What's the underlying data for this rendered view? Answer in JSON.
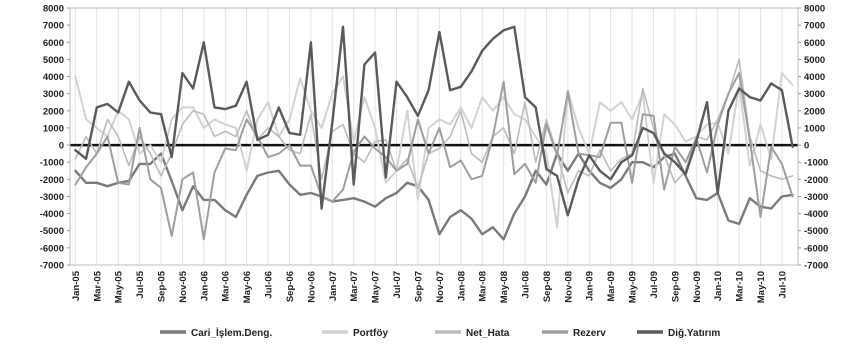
{
  "chart_data": {
    "type": "line",
    "title": "",
    "xlabel": "",
    "ylabel": "",
    "ylim": [
      -7000,
      8000
    ],
    "y_right_ticks": true,
    "grid": "vertical-gridlines",
    "zero_line": true,
    "legend_position": "bottom",
    "x": [
      "Jan-05",
      "Feb-05",
      "Mar-05",
      "Apr-05",
      "May-05",
      "Jun-05",
      "Jul-05",
      "Aug-05",
      "Sep-05",
      "Oct-05",
      "Nov-05",
      "Dec-05",
      "Jan-06",
      "Feb-06",
      "Mar-06",
      "Apr-06",
      "May-06",
      "Jun-06",
      "Jul-06",
      "Aug-06",
      "Sep-06",
      "Oct-06",
      "Nov-06",
      "Dec-06",
      "Jan-07",
      "Feb-07",
      "Mar-07",
      "Apr-07",
      "May-07",
      "Jun-07",
      "Jul-07",
      "Aug-07",
      "Sep-07",
      "Oct-07",
      "Nov-07",
      "Dec-07",
      "Jan-08",
      "Feb-08",
      "Mar-08",
      "Apr-08",
      "May-08",
      "Jun-08",
      "Jul-08",
      "Aug-08",
      "Sep-08",
      "Oct-08",
      "Nov-08",
      "Dec-08",
      "Jan-09",
      "Feb-09",
      "Mar-09",
      "Apr-09",
      "May-09",
      "Jun-09",
      "Jul-09",
      "Aug-09",
      "Sep-09",
      "Oct-09",
      "Nov-09",
      "Dec-09",
      "Jan-10",
      "Feb-10",
      "Mar-10",
      "Apr-10",
      "May-10",
      "Jun-10",
      "Jul-10",
      "Aug-10"
    ],
    "x_tick_labels": [
      "Jan-05",
      "Mar-05",
      "May-05",
      "Jul-05",
      "Sep-05",
      "Nov-05",
      "Jan-06",
      "Mar-06",
      "May-06",
      "Jul-06",
      "Sep-06",
      "Nov-06",
      "Jan-07",
      "Mar-07",
      "May-07",
      "Jul-07",
      "Sep-07",
      "Nov-07",
      "Jan-08",
      "Mar-08",
      "May-08",
      "Jul-08",
      "Sep-08",
      "Nov-08",
      "Jan-09",
      "Mar-09",
      "May-09",
      "Jul-09",
      "Sep-09",
      "Nov-09",
      "Jan-10",
      "Mar-10",
      "May-10",
      "Jul-10"
    ],
    "y_ticks": [
      8000,
      7000,
      6000,
      5000,
      4000,
      3000,
      2000,
      1000,
      0,
      -1000,
      -2000,
      -3000,
      -4000,
      -5000,
      -6000,
      -7000
    ],
    "series": [
      {
        "name": "Cari_İşlem.Deng.",
        "color": "#7a7a7a",
        "width": 2.4,
        "values": [
          -1500,
          -2200,
          -2200,
          -2400,
          -2200,
          -2100,
          -1100,
          -1100,
          -500,
          -2100,
          -3800,
          -2400,
          -3200,
          -3200,
          -3800,
          -4200,
          -2900,
          -1800,
          -1600,
          -1500,
          -2300,
          -2900,
          -2800,
          -3000,
          -3300,
          -3200,
          -3100,
          -3300,
          -3600,
          -3100,
          -2800,
          -2200,
          -2400,
          -3200,
          -5200,
          -4200,
          -3800,
          -4300,
          -5200,
          -4800,
          -5500,
          -4000,
          -3000,
          -1500,
          -2300,
          -500,
          -1500,
          -500,
          -1500,
          -2200,
          -2500,
          -2000,
          -1000,
          -1000,
          -1300,
          -700,
          -500,
          -1800,
          -3100,
          -3200,
          -2800,
          -4400,
          -4600,
          -3100,
          -3600,
          -3700,
          -3000,
          -2900
        ]
      },
      {
        "name": "Portföy",
        "color": "#d2d2d2",
        "width": 2.0,
        "values": [
          4000,
          1500,
          1000,
          500,
          2000,
          1500,
          -500,
          0,
          -1000,
          1500,
          2200,
          2200,
          1000,
          1500,
          1200,
          1000,
          -1500,
          1500,
          2500,
          500,
          1500,
          3900,
          2000,
          1000,
          3000,
          4000,
          200,
          2800,
          1000,
          -2200,
          -1500,
          2000,
          -3200,
          1000,
          1500,
          1200,
          2200,
          1000,
          2800,
          2000,
          2800,
          1800,
          1500,
          500,
          -500,
          -4800,
          3200,
          1000,
          -500,
          2500,
          2000,
          2500,
          1500,
          3000,
          -2200,
          1800,
          1200,
          200,
          500,
          1200,
          1300,
          -500,
          3500,
          -1200,
          1200,
          -800,
          4200,
          3500
        ]
      },
      {
        "name": "Net_Hata",
        "color": "#bcbcbc",
        "width": 1.6,
        "values": [
          -800,
          500,
          -500,
          1500,
          500,
          -1200,
          500,
          -500,
          -1800,
          -500,
          1200,
          2000,
          1800,
          500,
          800,
          500,
          2000,
          300,
          1000,
          500,
          -300,
          -500,
          1800,
          -2000,
          800,
          1200,
          -500,
          -1000,
          200,
          300,
          -1500,
          -800,
          -2500,
          -500,
          -200,
          500,
          2000,
          -500,
          -1000,
          500,
          1000,
          -500,
          2500,
          -1000,
          1500,
          -500,
          -2800,
          -1500,
          -1800,
          -300,
          -1500,
          -800,
          -500,
          3300,
          1000,
          -600,
          -2200,
          -1500,
          500,
          300,
          1500,
          3000,
          5000,
          500,
          -1500,
          -1800,
          -2000,
          -1800
        ]
      },
      {
        "name": "Rezerv",
        "color": "#9e9e9e",
        "width": 2.0,
        "values": [
          -2300,
          -1300,
          -500,
          500,
          -2200,
          -2300,
          1000,
          -2000,
          -2500,
          -5300,
          -2000,
          -1600,
          -5500,
          -1600,
          -200,
          -300,
          1500,
          500,
          -700,
          -500,
          0,
          -1200,
          -1200,
          -3000,
          -3300,
          -2600,
          -400,
          500,
          -200,
          -700,
          -1500,
          -1100,
          1500,
          -500,
          1000,
          -1300,
          -900,
          -2000,
          -1800,
          500,
          3700,
          -1700,
          -1100,
          -2200,
          1200,
          -600,
          3100,
          -500,
          -600,
          -700,
          1300,
          1300,
          -2200,
          1800,
          1700,
          -2600,
          -100,
          -1000,
          400,
          -1600,
          1200,
          3000,
          4200,
          300,
          -4200,
          -100,
          -1100,
          -3000
        ]
      },
      {
        "name": "Diğ.Yatırım",
        "color": "#5a5a5a",
        "width": 2.4,
        "values": [
          -300,
          -800,
          2200,
          2400,
          1900,
          3700,
          2600,
          1900,
          1800,
          -700,
          4200,
          3300,
          6000,
          2200,
          2100,
          2300,
          3700,
          300,
          600,
          2200,
          700,
          600,
          6000,
          -3700,
          1300,
          6900,
          -2300,
          4700,
          5400,
          -1900,
          3700,
          2800,
          1700,
          3200,
          6600,
          3200,
          3400,
          4300,
          5500,
          6200,
          6700,
          6900,
          2800,
          2200,
          -1400,
          -1800,
          -4100,
          -2000,
          -600,
          -1500,
          -2000,
          -1000,
          -600,
          1000,
          700,
          -500,
          -1000,
          -1700,
          200,
          2500,
          -2800,
          2000,
          3300,
          2800,
          2600,
          3600,
          3200,
          -100
        ]
      }
    ]
  }
}
